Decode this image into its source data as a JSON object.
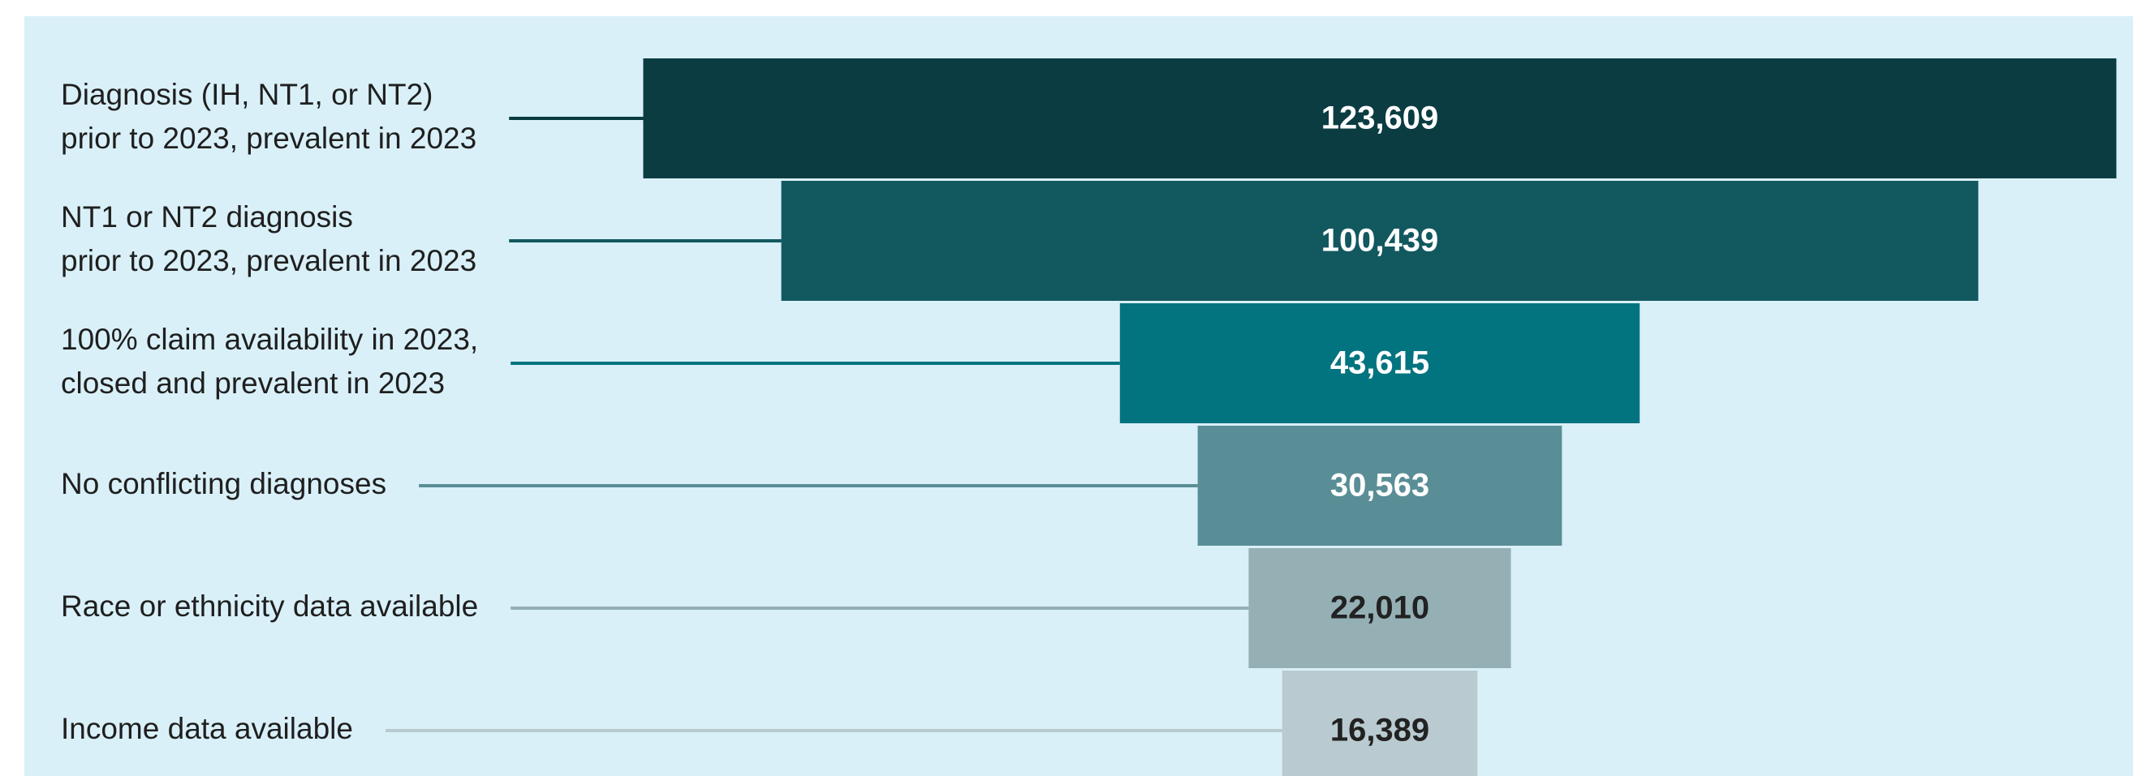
{
  "chart_data": {
    "type": "funnel",
    "categories": [
      [
        "Diagnosis (IH, NT1, or NT2)",
        "prior to 2023, prevalent in 2023"
      ],
      [
        "NT1 or NT2 diagnosis",
        "prior to 2023, prevalent in 2023"
      ],
      [
        "100% claim availability in 2023,",
        "closed and prevalent in 2023"
      ],
      [
        "No conflicting diagnoses"
      ],
      [
        "Race or ethnicity data available"
      ],
      [
        "Income data available"
      ]
    ],
    "values": [
      123609,
      100439,
      43615,
      30563,
      22010,
      16389
    ],
    "value_labels": [
      "123,609",
      "100,439",
      "43,615",
      "30,563",
      "22,010",
      "16,389"
    ],
    "colors": [
      "#0a3c42",
      "#12585f",
      "#027480",
      "#5a8e97",
      "#94b0b5",
      "#b9cbd0"
    ],
    "label_colors": [
      "#ffffff",
      "#ffffff",
      "#ffffff",
      "#ffffff",
      "#222222",
      "#222222"
    ]
  }
}
